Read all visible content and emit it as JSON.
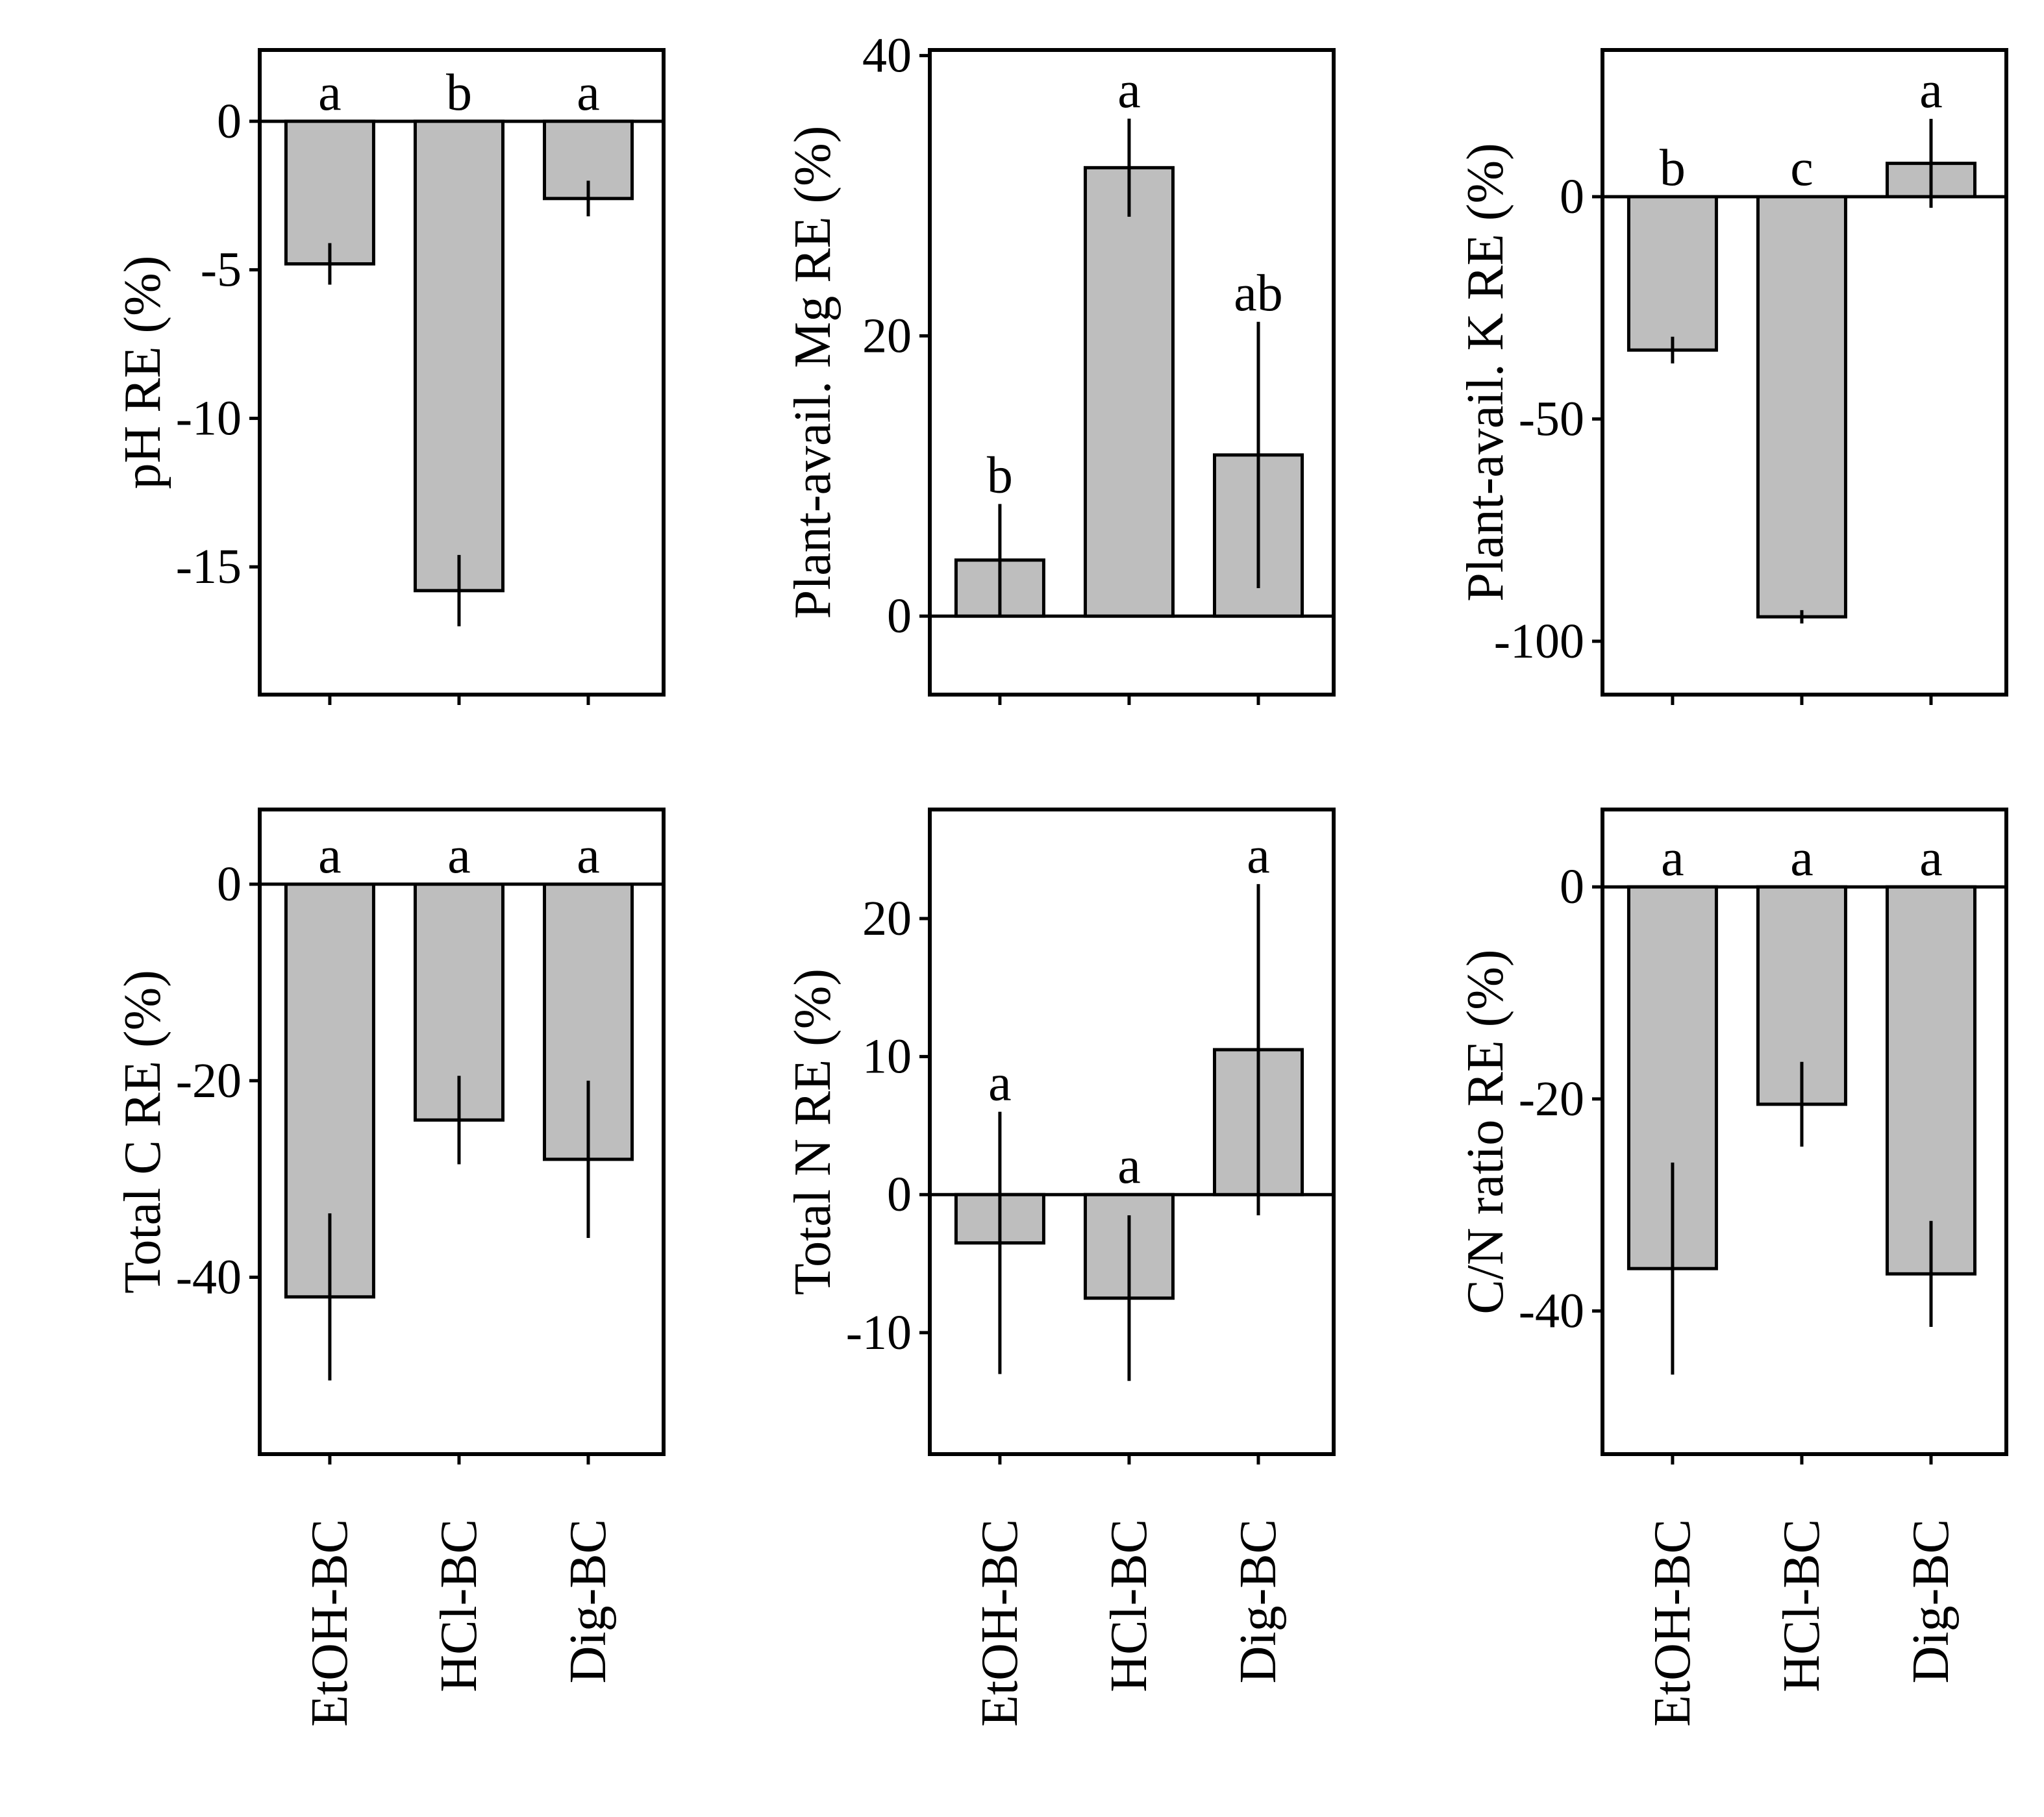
{
  "figure": {
    "categories": [
      "EtOH-BC",
      "HCl-BC",
      "Dig-BC"
    ],
    "colors": {
      "bar_fill": "#bebebe",
      "stroke": "#000000",
      "background": "#ffffff"
    }
  },
  "chart_data": [
    {
      "type": "bar",
      "ylabel": "pH RE (%)",
      "categories": [
        "EtOH-BC",
        "HCl-BC",
        "Dig-BC"
      ],
      "values": [
        -4.8,
        -15.8,
        -2.6
      ],
      "error": [
        0.7,
        1.2,
        0.6
      ],
      "significance": [
        "a",
        "b",
        "a"
      ],
      "yticks": [
        0,
        -5,
        -10,
        -15
      ],
      "ylim": [
        -19.3,
        2.4
      ]
    },
    {
      "type": "bar",
      "ylabel": "Plant-avail. Mg RE (%)",
      "categories": [
        "EtOH-BC",
        "HCl-BC",
        "Dig-BC"
      ],
      "values": [
        4.0,
        32.0,
        11.5
      ],
      "error": [
        4.0,
        3.5,
        9.5
      ],
      "significance": [
        "b",
        "a",
        "ab"
      ],
      "yticks": [
        0,
        20,
        40
      ],
      "ylim": [
        -5.6,
        40.4
      ]
    },
    {
      "type": "bar",
      "ylabel": "Plant-avail. K RE (%)",
      "categories": [
        "EtOH-BC",
        "HCl-BC",
        "Dig-BC"
      ],
      "values": [
        -34.5,
        -94.5,
        7.5
      ],
      "error": [
        3.0,
        1.5,
        10.0
      ],
      "significance": [
        "b",
        "c",
        "a"
      ],
      "yticks": [
        0,
        -50,
        -100
      ],
      "ylim": [
        -112,
        33
      ]
    },
    {
      "type": "bar",
      "ylabel": "Total C RE (%)",
      "categories": [
        "EtOH-BC",
        "HCl-BC",
        "Dig-BC"
      ],
      "values": [
        -42.0,
        -24.0,
        -28.0
      ],
      "error": [
        8.5,
        4.5,
        8.0
      ],
      "significance": [
        "a",
        "a",
        "a"
      ],
      "yticks": [
        0,
        -20,
        -40
      ],
      "ylim": [
        -58,
        7.6
      ]
    },
    {
      "type": "bar",
      "ylabel": "Total N RE (%)",
      "categories": [
        "EtOH-BC",
        "HCl-BC",
        "Dig-BC"
      ],
      "values": [
        -3.5,
        -7.5,
        10.5
      ],
      "error": [
        9.5,
        6.0,
        12.0
      ],
      "significance": [
        "a",
        "a",
        "a"
      ],
      "yticks": [
        20,
        10,
        0,
        -10
      ],
      "ylim": [
        -18.8,
        27.9
      ]
    },
    {
      "type": "bar",
      "ylabel": "C/N ratio RE (%)",
      "categories": [
        "EtOH-BC",
        "HCl-BC",
        "Dig-BC"
      ],
      "values": [
        -36.0,
        -20.5,
        -36.5
      ],
      "error": [
        10.0,
        4.0,
        5.0
      ],
      "significance": [
        "a",
        "a",
        "a"
      ],
      "yticks": [
        0,
        -20,
        -40
      ],
      "ylim": [
        -53.5,
        7.3
      ]
    }
  ]
}
